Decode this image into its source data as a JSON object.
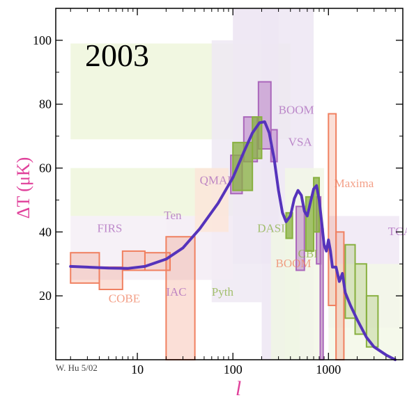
{
  "chart_data": {
    "type": "scatter",
    "title": "2003",
    "xlabel": "l",
    "ylabel": "ΔT (μK)",
    "xscale": "log",
    "xlim": [
      1.4,
      6000
    ],
    "ylim": [
      0,
      110
    ],
    "x_ticks": [
      10,
      100,
      1000
    ],
    "x_tick_labels": [
      "10",
      "100",
      "1000"
    ],
    "y_ticks": [
      20,
      40,
      60,
      80,
      100
    ],
    "y_tick_labels": [
      "20",
      "40",
      "60",
      "80",
      "100"
    ],
    "credit": "W. Hu 5/02",
    "colors": {
      "curve": "#5533bb",
      "axis_label": "#e0409a",
      "cobe": "#f08060",
      "green": "#88b040",
      "purple": "#aa66bb"
    },
    "model_curve": {
      "name": "",
      "x": [
        2,
        3,
        5,
        8,
        12,
        20,
        30,
        45,
        70,
        100,
        130,
        160,
        190,
        215,
        240,
        270,
        300,
        330,
        360,
        400,
        440,
        480,
        520,
        560,
        600,
        650,
        700,
        750,
        800,
        850,
        900,
        950,
        1000,
        1050,
        1100,
        1200,
        1300,
        1400,
        1500,
        1700,
        2000,
        2500,
        3000,
        4000,
        5000
      ],
      "y": [
        29.2,
        29,
        28.7,
        28.6,
        29.2,
        31.5,
        35,
        41,
        49,
        57,
        65,
        71,
        74.2,
        74.5,
        71,
        63,
        53,
        46,
        43.2,
        45,
        50.5,
        53,
        51.5,
        46.5,
        45,
        49.5,
        53.5,
        54.5,
        50,
        43,
        36,
        34,
        37.5,
        34,
        29,
        29,
        24.5,
        27,
        21,
        17,
        12.5,
        7,
        4,
        1.5,
        0
      ]
    },
    "band_powers": [
      {
        "experiment": "COBE",
        "color": "#f08060",
        "points": [
          {
            "x": [
              2,
              4
            ],
            "y": [
              24,
              33.5
            ]
          },
          {
            "x": [
              4,
              7
            ],
            "y": [
              22,
              29
            ]
          },
          {
            "x": [
              7,
              12
            ],
            "y": [
              28,
              34
            ]
          },
          {
            "x": [
              12,
              22
            ],
            "y": [
              28,
              33.5
            ]
          }
        ]
      },
      {
        "experiment": "Ten",
        "color": "#f08060",
        "points": [
          {
            "x": [
              20,
              40
            ],
            "y": [
              0,
              38.5
            ]
          }
        ]
      },
      {
        "experiment": "BOOM",
        "color": "#aa66bb",
        "points": [
          {
            "x": [
              185,
              250
            ],
            "y": [
              66,
              87
            ]
          },
          {
            "x": [
              250,
              290
            ],
            "y": [
              62,
              72
            ]
          },
          {
            "x": [
              460,
              560
            ],
            "y": [
              28,
              48
            ]
          },
          {
            "x": [
              750,
              830
            ],
            "y": [
              30,
              51
            ]
          },
          {
            "x": [
              820,
              880
            ],
            "y": [
              0,
              41
            ]
          }
        ]
      },
      {
        "experiment": "VSA",
        "color": "#aa66bb",
        "points": [
          {
            "x": [
              130,
              180
            ],
            "y": [
              62,
              76
            ]
          },
          {
            "x": [
              95,
              125
            ],
            "y": [
              52,
              64
            ]
          }
        ]
      },
      {
        "experiment": "Maxima",
        "color": "#f08060",
        "points": [
          {
            "x": [
              1000,
              1200
            ],
            "y": [
              17,
              77
            ]
          },
          {
            "x": [
              1200,
              1450
            ],
            "y": [
              0,
              40
            ]
          }
        ]
      },
      {
        "experiment": "DASI",
        "color": "#88b040",
        "points": [
          {
            "x": [
              100,
              160
            ],
            "y": [
              53,
              68
            ]
          },
          {
            "x": [
              160,
              200
            ],
            "y": [
              63,
              76
            ]
          },
          {
            "x": [
              360,
              420
            ],
            "y": [
              38,
              46
            ]
          },
          {
            "x": [
              580,
              700
            ],
            "y": [
              34,
              51
            ]
          },
          {
            "x": [
              700,
              800
            ],
            "y": [
              40,
              57
            ]
          }
        ]
      },
      {
        "experiment": "CBI",
        "color": "#88b040",
        "points": [
          {
            "x": [
              1500,
              1900
            ],
            "y": [
              13,
              36
            ]
          },
          {
            "x": [
              1900,
              2500
            ],
            "y": [
              8,
              30
            ]
          },
          {
            "x": [
              2500,
              3300
            ],
            "y": [
              4,
              20
            ]
          }
        ]
      }
    ],
    "ghost_labels": [
      {
        "text": "BOOM",
        "x": 300,
        "y": 77,
        "color": "#aa66bb"
      },
      {
        "text": "VSA",
        "x": 380,
        "y": 67,
        "color": "#aa66bb"
      },
      {
        "text": "Maxima",
        "x": 1150,
        "y": 54,
        "color": "#f08060"
      },
      {
        "text": "DASI",
        "x": 180,
        "y": 40,
        "color": "#88b040"
      },
      {
        "text": "CBI",
        "x": 480,
        "y": 32,
        "color": "#88b040"
      },
      {
        "text": "BOOM",
        "x": 280,
        "y": 29,
        "color": "#f08060"
      },
      {
        "text": "COBE",
        "x": 5,
        "y": 18,
        "color": "#f08060"
      },
      {
        "text": "FIRS",
        "x": 3.8,
        "y": 40,
        "color": "#aa66bb"
      },
      {
        "text": "Ten",
        "x": 19,
        "y": 44,
        "color": "#aa66bb"
      },
      {
        "text": "QMAP",
        "x": 45,
        "y": 55,
        "color": "#aa66bb"
      },
      {
        "text": "IAC",
        "x": 20,
        "y": 20,
        "color": "#aa66bb"
      },
      {
        "text": "Pyth",
        "x": 60,
        "y": 20,
        "color": "#88b040"
      },
      {
        "text": "TCA",
        "x": 4200,
        "y": 39,
        "color": "#aa66bb"
      }
    ]
  }
}
